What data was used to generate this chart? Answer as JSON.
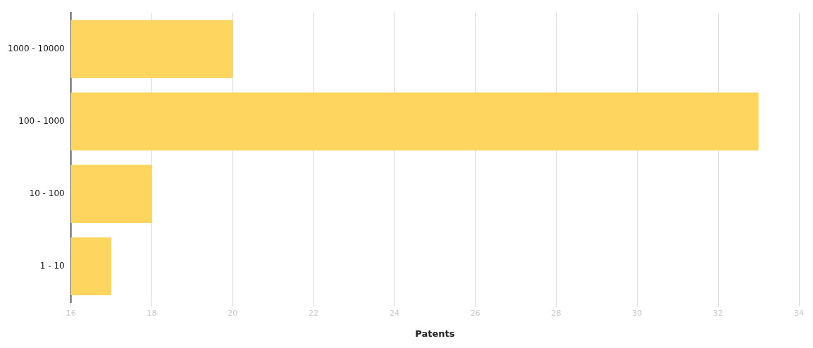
{
  "chart_data": {
    "type": "bar",
    "orientation": "horizontal",
    "xlabel": "Patents",
    "categories": [
      "1000 - 10000",
      "100 - 1000",
      "10 - 100",
      "1 - 10"
    ],
    "values": [
      20,
      33,
      18,
      17
    ],
    "color": "#fdd55f",
    "xlim": [
      16,
      34
    ],
    "xticks": [
      16,
      18,
      20,
      22,
      24,
      26,
      28,
      30,
      32,
      34
    ],
    "grid": "x",
    "legend": false
  }
}
